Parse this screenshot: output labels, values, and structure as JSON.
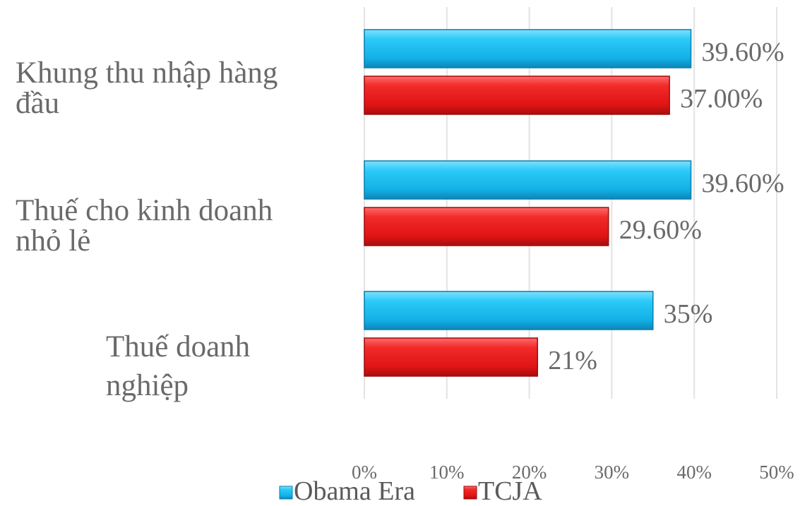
{
  "chart_data": {
    "type": "bar",
    "orientation": "horizontal",
    "categories": [
      [
        "Khung thu nhập hàng",
        "đầu"
      ],
      [
        "Thuế cho kinh doanh",
        "nhỏ lẻ"
      ],
      [
        "Thuế doanh",
        "nghiệp"
      ]
    ],
    "series": [
      {
        "name": "Obama Era",
        "color": "#1ec0f0",
        "values": [
          39.6,
          39.6,
          35
        ],
        "labels": [
          "39.60%",
          "39.60%",
          "35%"
        ]
      },
      {
        "name": "TCJA",
        "color": "#ee1b1b",
        "values": [
          37.0,
          29.6,
          21
        ],
        "labels": [
          "37.00%",
          "29.60%",
          "21%"
        ]
      }
    ],
    "xlim": [
      0,
      50
    ],
    "x_ticks": [
      "0%",
      "10%",
      "20%",
      "30%",
      "40%",
      "50%"
    ],
    "grid": "vertical",
    "legend_position": "bottom"
  }
}
